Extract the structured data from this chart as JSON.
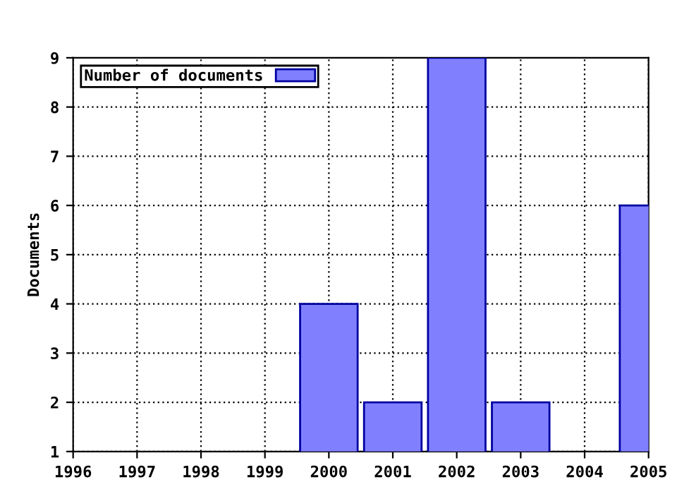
{
  "chart_data": {
    "type": "bar",
    "ylabel": "Documents",
    "x": [
      2000,
      2001,
      2002,
      2003,
      2005
    ],
    "series": [
      {
        "name": "Number of documents",
        "color": "#8080ff",
        "values": [
          4,
          2,
          9,
          2,
          6
        ]
      }
    ],
    "xlim": [
      1996,
      2005
    ],
    "xticks": [
      1996,
      1997,
      1998,
      1999,
      2000,
      2001,
      2002,
      2003,
      2004,
      2005
    ],
    "ylim": [
      1,
      9
    ],
    "yticks": [
      1,
      2,
      3,
      4,
      5,
      6,
      7,
      8,
      9
    ],
    "grid": true,
    "legend": "top left"
  }
}
